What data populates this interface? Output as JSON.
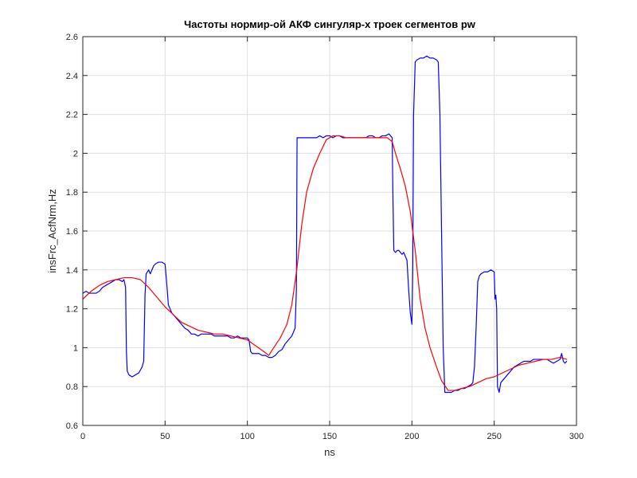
{
  "chart_data": {
    "type": "line",
    "title": "Частоты нормир-ой АКФ сингуляр-х троек сегментов pw",
    "xlabel": "ns",
    "ylabel": "insFrc_AcfNrm,Hz",
    "xlim": [
      0,
      300
    ],
    "ylim": [
      0.6,
      2.6
    ],
    "xticks": [
      0,
      50,
      100,
      150,
      200,
      250,
      300
    ],
    "yticks": [
      0.6,
      0.8,
      1,
      1.2,
      1.4,
      1.6,
      1.8,
      2,
      2.2,
      2.4,
      2.6
    ],
    "xtick_labels": [
      "0",
      "50",
      "100",
      "150",
      "200",
      "250",
      "300"
    ],
    "ytick_labels": [
      "0.6",
      "0.8",
      "1",
      "1.2",
      "1.4",
      "1.6",
      "1.8",
      "2",
      "2.2",
      "2.4",
      "2.6"
    ],
    "grid": true,
    "series": [
      {
        "color": "#0000ff",
        "points": [
          [
            0,
            1.28
          ],
          [
            2,
            1.29
          ],
          [
            4,
            1.28
          ],
          [
            6,
            1.28
          ],
          [
            8,
            1.28
          ],
          [
            10,
            1.29
          ],
          [
            12,
            1.31
          ],
          [
            14,
            1.32
          ],
          [
            16,
            1.33
          ],
          [
            18,
            1.34
          ],
          [
            20,
            1.35
          ],
          [
            22,
            1.35
          ],
          [
            24,
            1.34
          ],
          [
            25,
            1.35
          ],
          [
            26,
            1.31
          ],
          [
            26.5,
            0.98
          ],
          [
            27,
            0.88
          ],
          [
            28,
            0.86
          ],
          [
            30,
            0.85
          ],
          [
            32,
            0.86
          ],
          [
            34,
            0.87
          ],
          [
            36,
            0.9
          ],
          [
            37,
            0.93
          ],
          [
            37.8,
            1.27
          ],
          [
            38.5,
            1.38
          ],
          [
            40,
            1.4
          ],
          [
            41,
            1.38
          ],
          [
            42,
            1.4
          ],
          [
            43,
            1.42
          ],
          [
            44,
            1.43
          ],
          [
            46,
            1.44
          ],
          [
            48,
            1.44
          ],
          [
            50,
            1.43
          ],
          [
            51,
            1.33
          ],
          [
            52,
            1.22
          ],
          [
            54,
            1.18
          ],
          [
            56,
            1.16
          ],
          [
            58,
            1.14
          ],
          [
            60,
            1.12
          ],
          [
            62,
            1.1
          ],
          [
            64,
            1.09
          ],
          [
            66,
            1.07
          ],
          [
            68,
            1.07
          ],
          [
            70,
            1.06
          ],
          [
            72,
            1.07
          ],
          [
            74,
            1.07
          ],
          [
            76,
            1.07
          ],
          [
            78,
            1.07
          ],
          [
            80,
            1.06
          ],
          [
            82,
            1.06
          ],
          [
            84,
            1.06
          ],
          [
            86,
            1.06
          ],
          [
            88,
            1.06
          ],
          [
            90,
            1.05
          ],
          [
            92,
            1.05
          ],
          [
            94,
            1.06
          ],
          [
            96,
            1.05
          ],
          [
            98,
            1.05
          ],
          [
            100,
            1.05
          ],
          [
            101,
            1.04
          ],
          [
            102,
            0.98
          ],
          [
            103,
            0.97
          ],
          [
            105,
            0.97
          ],
          [
            107,
            0.97
          ],
          [
            109,
            0.96
          ],
          [
            111,
            0.96
          ],
          [
            113,
            0.95
          ],
          [
            115,
            0.95
          ],
          [
            117,
            0.96
          ],
          [
            119,
            0.98
          ],
          [
            121,
            0.99
          ],
          [
            123,
            1.02
          ],
          [
            125,
            1.04
          ],
          [
            127,
            1.06
          ],
          [
            129,
            1.1
          ],
          [
            129.8,
            1.3
          ],
          [
            130.2,
            2.08
          ],
          [
            132,
            2.08
          ],
          [
            134,
            2.08
          ],
          [
            136,
            2.08
          ],
          [
            138,
            2.08
          ],
          [
            140,
            2.08
          ],
          [
            142,
            2.08
          ],
          [
            144,
            2.09
          ],
          [
            146,
            2.08
          ],
          [
            148,
            2.09
          ],
          [
            150,
            2.09
          ],
          [
            152,
            2.08
          ],
          [
            154,
            2.09
          ],
          [
            156,
            2.09
          ],
          [
            158,
            2.08
          ],
          [
            160,
            2.08
          ],
          [
            162,
            2.08
          ],
          [
            164,
            2.08
          ],
          [
            166,
            2.08
          ],
          [
            168,
            2.08
          ],
          [
            170,
            2.08
          ],
          [
            172,
            2.08
          ],
          [
            174,
            2.09
          ],
          [
            176,
            2.09
          ],
          [
            178,
            2.08
          ],
          [
            180,
            2.08
          ],
          [
            182,
            2.09
          ],
          [
            184,
            2.09
          ],
          [
            186,
            2.1
          ],
          [
            187,
            2.09
          ],
          [
            188,
            2.08
          ],
          [
            188.5,
            1.75
          ],
          [
            189,
            1.5
          ],
          [
            190,
            1.49
          ],
          [
            191,
            1.5
          ],
          [
            192,
            1.5
          ],
          [
            193,
            1.49
          ],
          [
            194,
            1.48
          ],
          [
            195,
            1.49
          ],
          [
            196,
            1.47
          ],
          [
            197,
            1.45
          ],
          [
            198,
            1.3
          ],
          [
            199,
            1.18
          ],
          [
            200,
            1.12
          ],
          [
            200.5,
            1.4
          ],
          [
            201,
            2.2
          ],
          [
            202,
            2.47
          ],
          [
            203,
            2.48
          ],
          [
            205,
            2.49
          ],
          [
            207,
            2.49
          ],
          [
            209,
            2.5
          ],
          [
            211,
            2.49
          ],
          [
            213,
            2.49
          ],
          [
            215,
            2.48
          ],
          [
            216,
            2.47
          ],
          [
            217,
            2.2
          ],
          [
            218,
            1.6
          ],
          [
            219,
            1.0
          ],
          [
            220,
            0.77
          ],
          [
            222,
            0.77
          ],
          [
            224,
            0.77
          ],
          [
            226,
            0.78
          ],
          [
            228,
            0.78
          ],
          [
            230,
            0.79
          ],
          [
            232,
            0.79
          ],
          [
            234,
            0.8
          ],
          [
            236,
            0.81
          ],
          [
            237,
            0.82
          ],
          [
            238,
            0.9
          ],
          [
            239,
            1.1
          ],
          [
            240,
            1.34
          ],
          [
            241,
            1.37
          ],
          [
            242,
            1.38
          ],
          [
            244,
            1.39
          ],
          [
            246,
            1.39
          ],
          [
            248,
            1.4
          ],
          [
            250,
            1.39
          ],
          [
            250.5,
            1.25
          ],
          [
            251,
            1.27
          ],
          [
            251.5,
            1.2
          ],
          [
            252,
            0.8
          ],
          [
            253,
            0.77
          ],
          [
            254,
            0.82
          ],
          [
            256,
            0.84
          ],
          [
            258,
            0.86
          ],
          [
            260,
            0.88
          ],
          [
            262,
            0.9
          ],
          [
            264,
            0.91
          ],
          [
            266,
            0.92
          ],
          [
            268,
            0.93
          ],
          [
            270,
            0.93
          ],
          [
            272,
            0.93
          ],
          [
            274,
            0.94
          ],
          [
            276,
            0.94
          ],
          [
            278,
            0.94
          ],
          [
            280,
            0.94
          ],
          [
            282,
            0.94
          ],
          [
            284,
            0.93
          ],
          [
            286,
            0.92
          ],
          [
            288,
            0.93
          ],
          [
            290,
            0.94
          ],
          [
            291,
            0.97
          ],
          [
            292,
            0.93
          ],
          [
            293,
            0.92
          ],
          [
            294,
            0.93
          ]
        ]
      },
      {
        "color": "#ff0000",
        "points": [
          [
            0,
            1.25
          ],
          [
            5,
            1.29
          ],
          [
            10,
            1.32
          ],
          [
            15,
            1.34
          ],
          [
            20,
            1.35
          ],
          [
            25,
            1.36
          ],
          [
            30,
            1.36
          ],
          [
            35,
            1.35
          ],
          [
            40,
            1.31
          ],
          [
            45,
            1.26
          ],
          [
            50,
            1.21
          ],
          [
            55,
            1.17
          ],
          [
            60,
            1.13
          ],
          [
            65,
            1.11
          ],
          [
            70,
            1.09
          ],
          [
            75,
            1.08
          ],
          [
            80,
            1.07
          ],
          [
            85,
            1.07
          ],
          [
            90,
            1.06
          ],
          [
            95,
            1.05
          ],
          [
            100,
            1.04
          ],
          [
            105,
            1.01
          ],
          [
            110,
            0.98
          ],
          [
            113,
            0.96
          ],
          [
            116,
            1.0
          ],
          [
            120,
            1.05
          ],
          [
            124,
            1.12
          ],
          [
            127,
            1.22
          ],
          [
            130,
            1.4
          ],
          [
            133,
            1.63
          ],
          [
            136,
            1.8
          ],
          [
            140,
            1.92
          ],
          [
            144,
            2.0
          ],
          [
            148,
            2.07
          ],
          [
            152,
            2.09
          ],
          [
            156,
            2.09
          ],
          [
            160,
            2.08
          ],
          [
            165,
            2.08
          ],
          [
            170,
            2.08
          ],
          [
            175,
            2.08
          ],
          [
            180,
            2.08
          ],
          [
            185,
            2.08
          ],
          [
            188,
            2.06
          ],
          [
            190,
            2.0
          ],
          [
            193,
            1.92
          ],
          [
            196,
            1.83
          ],
          [
            199,
            1.7
          ],
          [
            202,
            1.5
          ],
          [
            205,
            1.25
          ],
          [
            208,
            1.1
          ],
          [
            211,
            1.0
          ],
          [
            215,
            0.9
          ],
          [
            218,
            0.83
          ],
          [
            222,
            0.78
          ],
          [
            226,
            0.78
          ],
          [
            230,
            0.79
          ],
          [
            235,
            0.8
          ],
          [
            240,
            0.82
          ],
          [
            245,
            0.84
          ],
          [
            250,
            0.85
          ],
          [
            255,
            0.87
          ],
          [
            260,
            0.89
          ],
          [
            265,
            0.91
          ],
          [
            270,
            0.92
          ],
          [
            275,
            0.93
          ],
          [
            280,
            0.94
          ],
          [
            285,
            0.94
          ],
          [
            290,
            0.95
          ],
          [
            294,
            0.94
          ]
        ]
      }
    ]
  }
}
